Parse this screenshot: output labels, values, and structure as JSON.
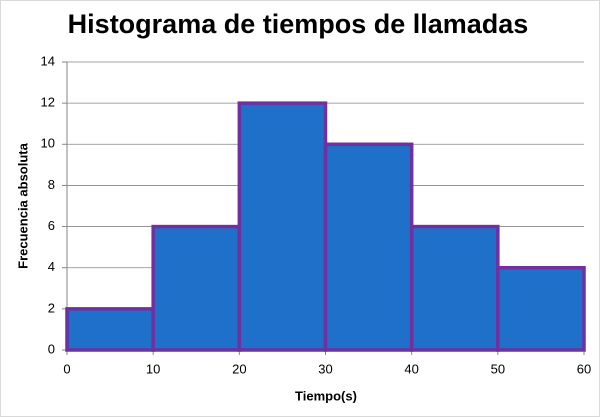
{
  "chart_data": {
    "type": "histogram",
    "title": "Histograma de tiempos de llamadas",
    "x_label": "Tiempo(s)",
    "y_label": "Frecuencia absoluta",
    "bins": [
      0,
      10,
      20,
      30,
      40,
      50,
      60
    ],
    "values": [
      2,
      6,
      12,
      10,
      6,
      4
    ],
    "color": "#1f70c8",
    "edge_color": "#7030a0",
    "xlim": [
      0,
      60
    ],
    "xticks": [
      0,
      10,
      20,
      30,
      40,
      50,
      60
    ],
    "ylim": [
      0,
      14
    ],
    "yticks": [
      0,
      2,
      4,
      6,
      8,
      10,
      12,
      14
    ],
    "grid": true
  }
}
